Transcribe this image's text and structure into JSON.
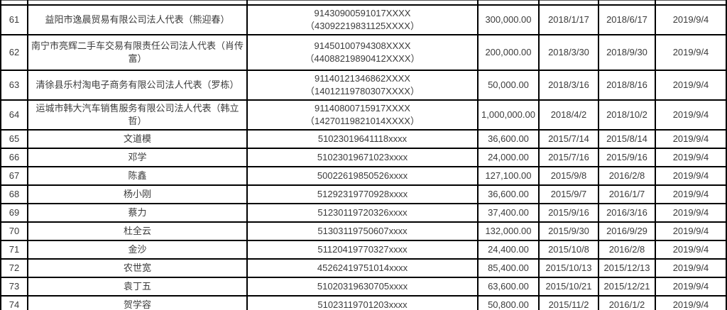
{
  "accent_colors": {
    "border": "#000000",
    "text": "#3b3b3b",
    "background": "#ffffff"
  },
  "table": {
    "description": "registry-table-of-persons-and-companies",
    "columns": [
      "no",
      "name",
      "id_number",
      "amount",
      "date1",
      "date2",
      "date3"
    ],
    "rows": [
      {
        "no": "61",
        "name": "益阳市逸晨贸易有限公司法人代表（熊迎春）",
        "id1": "91430900591017XXXX",
        "id2": "（43092219831125XXXX）",
        "amount": "300,000.00",
        "d1": "2018/1/17",
        "d2": "2018/6/17",
        "d3": "2019/9/4"
      },
      {
        "no": "62",
        "name": "南宁市亮辉二手车交易有限责任公司法人代表（肖传富）",
        "id1": "91450100794308XXXX",
        "id2": "（44088219890412XXXX）",
        "amount": "200,000.00",
        "d1": "2018/3/30",
        "d2": "2018/9/30",
        "d3": "2019/9/4"
      },
      {
        "no": "63",
        "name": "清徐县乐村淘电子商务有限公司法人代表（罗栋）",
        "id1": "91140121346862XXXX",
        "id2": "（14012119780307XXXX）",
        "amount": "50,000.00",
        "d1": "2018/3/16",
        "d2": "2018/8/16",
        "d3": "2019/9/4"
      },
      {
        "no": "64",
        "name": "运城市韩大汽车销售服务有限公司法人代表（韩立哲）",
        "id1": "91140800715917XXXX",
        "id2": "（14270119821014XXXX）",
        "amount": "1,000,000.00",
        "d1": "2018/4/2",
        "d2": "2018/10/2",
        "d3": "2019/9/4"
      },
      {
        "no": "65",
        "name": "文道模",
        "id1": "51023019641118xxxx",
        "id2": "",
        "amount": "36,600.00",
        "d1": "2015/7/14",
        "d2": "2015/8/14",
        "d3": "2019/9/4"
      },
      {
        "no": "66",
        "name": "邓学",
        "id1": "51023019671023xxxx",
        "id2": "",
        "amount": "24,000.00",
        "d1": "2015/7/16",
        "d2": "2015/9/16",
        "d3": "2019/9/4"
      },
      {
        "no": "67",
        "name": "陈鑫",
        "id1": "50022619850526xxxx",
        "id2": "",
        "amount": "127,100.00",
        "d1": "2015/9/8",
        "d2": "2016/2/8",
        "d3": "2019/9/4"
      },
      {
        "no": "68",
        "name": "杨小刚",
        "id1": "51292319770928xxxx",
        "id2": "",
        "amount": "36,600.00",
        "d1": "2015/9/7",
        "d2": "2016/1/7",
        "d3": "2019/9/4"
      },
      {
        "no": "69",
        "name": "蔡力",
        "id1": "51230119720326xxxx",
        "id2": "",
        "amount": "37,400.00",
        "d1": "2015/9/16",
        "d2": "2016/3/16",
        "d3": "2019/9/4"
      },
      {
        "no": "70",
        "name": "杜全云",
        "id1": "51303119750607xxxx",
        "id2": "",
        "amount": "132,000.00",
        "d1": "2015/9/30",
        "d2": "2016/9/29",
        "d3": "2019/9/4"
      },
      {
        "no": "71",
        "name": "金沙",
        "id1": "51120419770327xxxx",
        "id2": "",
        "amount": "24,400.00",
        "d1": "2015/10/8",
        "d2": "2016/2/8",
        "d3": "2019/9/4"
      },
      {
        "no": "72",
        "name": "农世宽",
        "id1": "45262419751014xxxx",
        "id2": "",
        "amount": "85,400.00",
        "d1": "2015/10/13",
        "d2": "2015/12/13",
        "d3": "2019/9/4"
      },
      {
        "no": "73",
        "name": "袁丁五",
        "id1": "51020319630705xxxx",
        "id2": "",
        "amount": "63,600.00",
        "d1": "2015/10/21",
        "d2": "2015/12/21",
        "d3": "2019/9/4"
      },
      {
        "no": "74",
        "name": "贺学容",
        "id1": "51023119701203xxxx",
        "id2": "",
        "amount": "50,800.00",
        "d1": "2015/11/2",
        "d2": "2016/1/2",
        "d3": "2019/9/4"
      }
    ]
  }
}
